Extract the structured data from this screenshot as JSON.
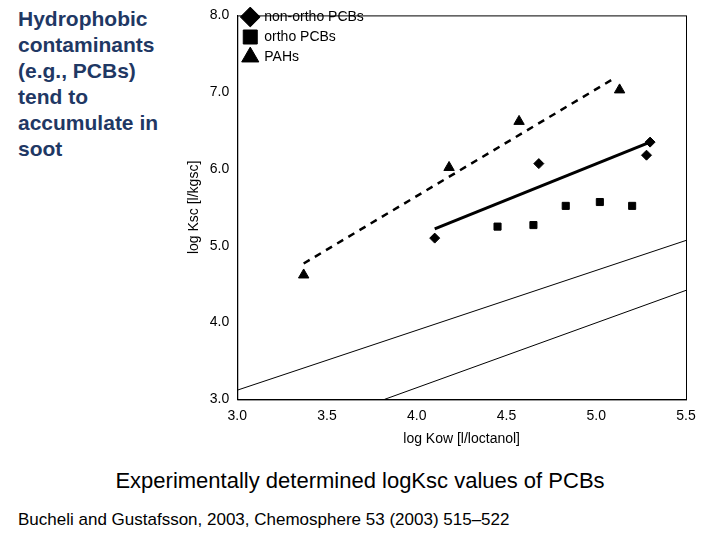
{
  "chart_data": {
    "type": "scatter",
    "annotation": "Hydrophobic contaminants (e.g., PCBs) tend to accumulate in soot",
    "caption": "Experimentally determined logKsc values of PCBs",
    "source": "Bucheli and Gustafsson, 2003, Chemosphere 53 (2003) 515–522",
    "x_label": "log Kow [l/loctanol]",
    "y_label": "log Ksc [l/kgsc]",
    "xlim": [
      3.0,
      5.5
    ],
    "xticks": [
      {
        "value": 3,
        "label": "3.0"
      },
      {
        "value": 3.5,
        "label": "3.5"
      },
      {
        "value": 4,
        "label": "4.0"
      },
      {
        "value": 4.5,
        "label": "4.5"
      },
      {
        "value": 5,
        "label": "5.0"
      },
      {
        "value": 5.5,
        "label": "5.5"
      }
    ],
    "ylim": [
      3.0,
      8.0
    ],
    "yticks": [
      {
        "value": 3,
        "label": "3.0"
      },
      {
        "value": 4,
        "label": "4.0"
      },
      {
        "value": 5,
        "label": "5.0"
      },
      {
        "value": 6,
        "label": "6.0"
      },
      {
        "value": 7,
        "label": "7.0"
      },
      {
        "value": 8,
        "label": "8.0"
      }
    ],
    "grid": false,
    "legend": "upper left",
    "series": [
      {
        "name": "non-ortho PCBs",
        "type": "scatter",
        "color": "#000000",
        "marker": "diamond",
        "x": [
          4.1,
          4.68,
          5.28,
          5.3
        ],
        "values": [
          5.1,
          6.07,
          6.18,
          6.35
        ]
      },
      {
        "name": "ortho PCBs",
        "type": "scatter",
        "color": "#000000",
        "marker": "square",
        "x": [
          4.45,
          4.65,
          4.83,
          5.02,
          5.2
        ],
        "values": [
          5.25,
          5.27,
          5.52,
          5.57,
          5.52
        ]
      },
      {
        "name": "PAHs",
        "type": "scatter",
        "color": "#000000",
        "marker": "triangle",
        "x": [
          3.37,
          4.18,
          4.57,
          5.13
        ],
        "values": [
          4.62,
          6.02,
          6.62,
          7.03
        ]
      },
      {
        "type": "line",
        "color": "#000000",
        "marker": "none",
        "line_style": "dashed",
        "x": [
          3.37,
          5.1
        ],
        "values": [
          4.77,
          7.18
        ]
      },
      {
        "type": "line",
        "color": "#000000",
        "marker": "none",
        "line_style": "solid",
        "x": [
          4.1,
          5.3
        ],
        "values": [
          5.22,
          6.35
        ]
      },
      {
        "type": "line",
        "color": "#000000",
        "marker": "none",
        "line_style": "solid",
        "x": [
          3.0,
          5.5
        ],
        "values": [
          3.12,
          5.07
        ]
      },
      {
        "type": "line",
        "color": "#000000",
        "marker": "none",
        "line_style": "solid",
        "x": [
          3.82,
          5.5
        ],
        "values": [
          3.0,
          4.42
        ]
      }
    ]
  }
}
